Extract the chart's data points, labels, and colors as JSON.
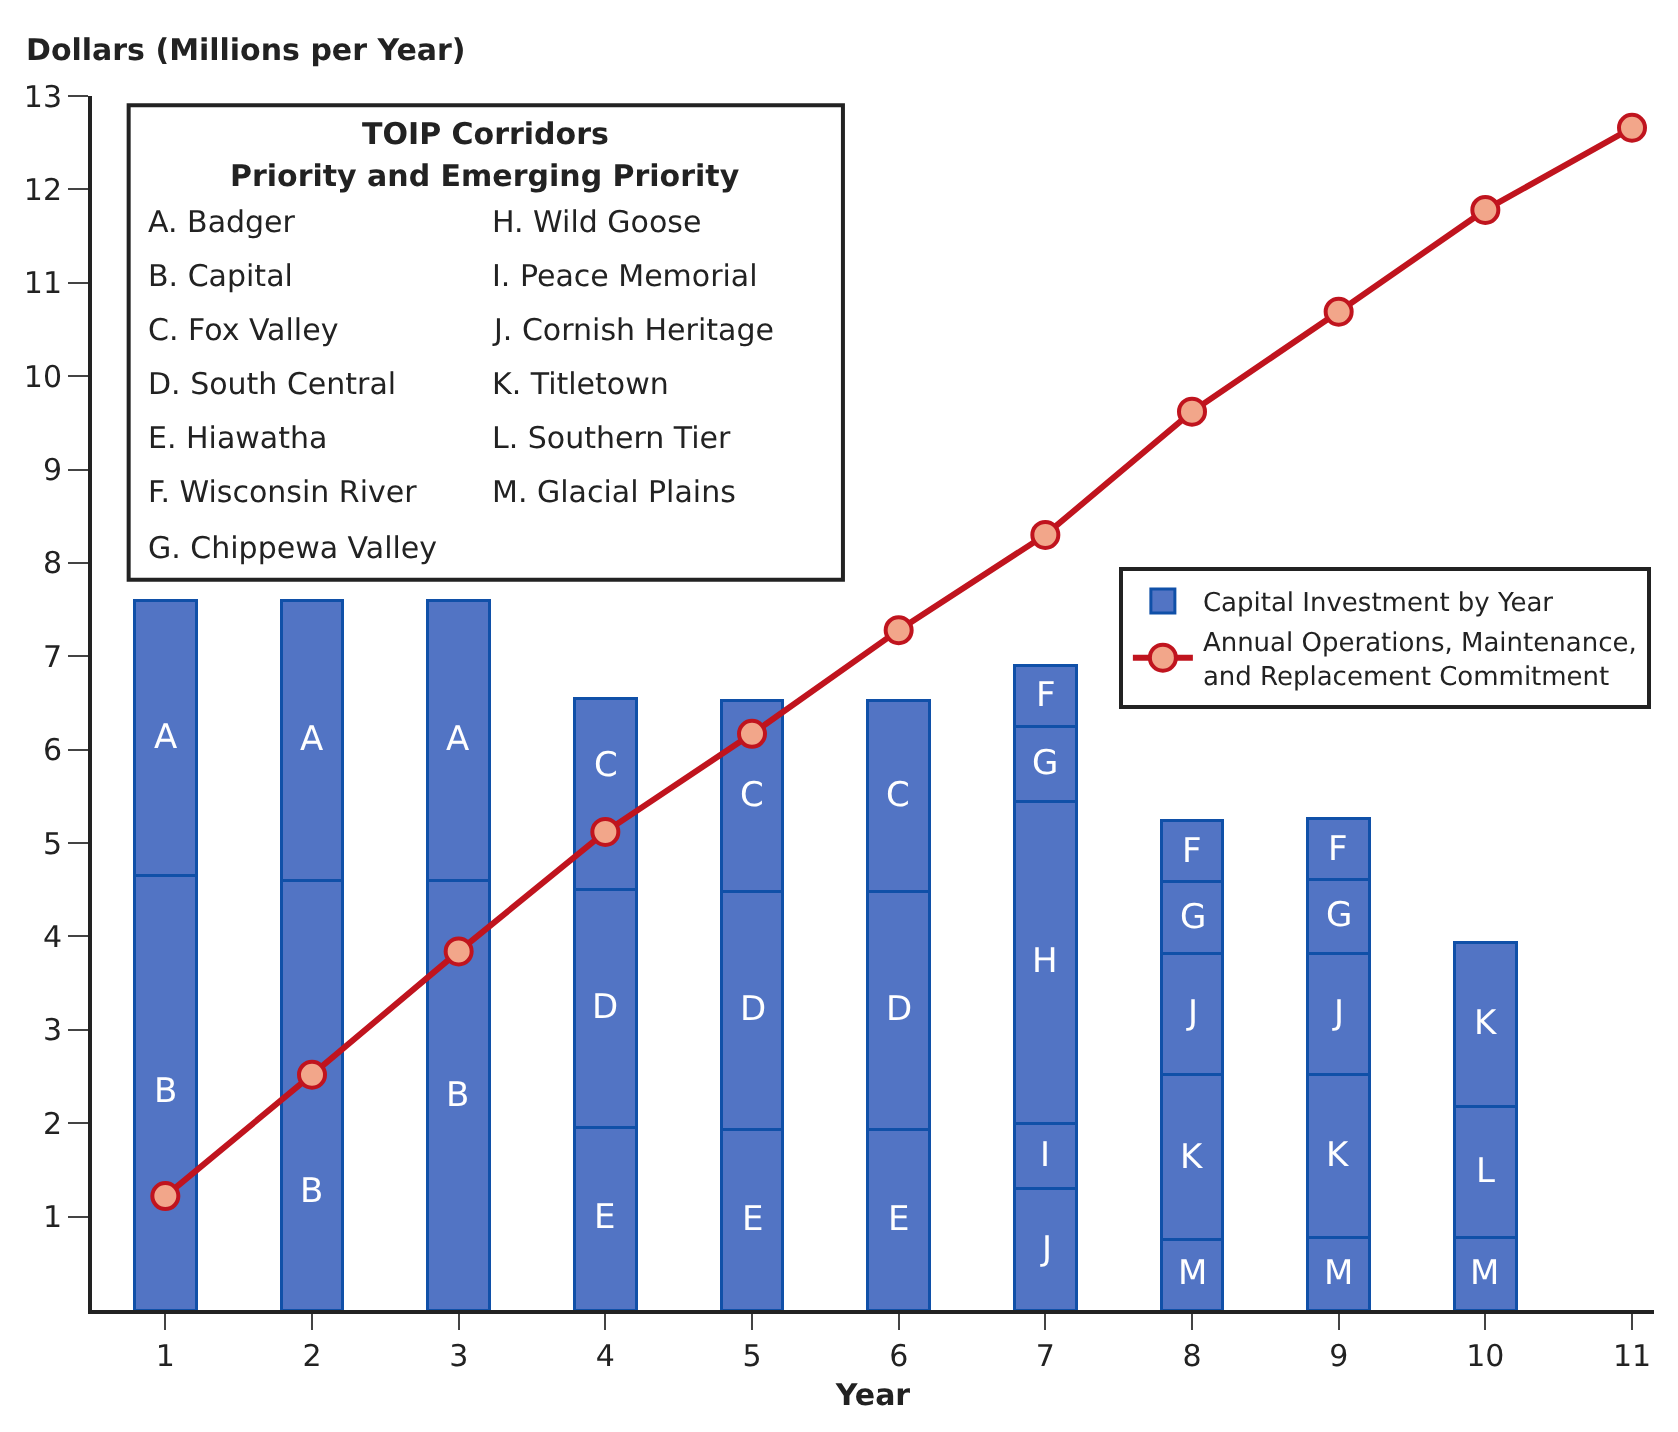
{
  "chart_data": {
    "type": "bar",
    "stacked": true,
    "ylabel": "Dollars (Millions per Year)",
    "xlabel": "Year",
    "x": [
      1,
      2,
      3,
      4,
      5,
      6,
      7,
      8,
      9,
      10,
      11
    ],
    "xlim": [
      0.5,
      11.15
    ],
    "xticks": [
      1,
      2,
      3,
      4,
      5,
      6,
      7,
      8,
      9,
      10,
      11
    ],
    "ylim": [
      0,
      13
    ],
    "yticks": [
      1,
      2,
      3,
      4,
      5,
      6,
      7,
      8,
      9,
      10,
      11,
      12,
      13
    ],
    "legend": "right",
    "series": [
      {
        "name": "Capital Investment by Year",
        "color": "#5274c4",
        "values": [
          4.65,
          4.6,
          4.6,
          1.95,
          1.93,
          1.93,
          1.3,
          0.75,
          0.78,
          0.78,
          null
        ],
        "value_labels": [
          "B",
          "B",
          "B",
          "E",
          "E",
          "E",
          "J",
          "M",
          "M",
          "M",
          null
        ]
      },
      {
        "color": "#5274c4",
        "values": [
          2.95,
          3.0,
          3.0,
          2.55,
          2.55,
          2.55,
          0.7,
          1.77,
          1.74,
          1.4,
          null
        ],
        "value_labels": [
          "A",
          "A",
          "A",
          "D",
          "D",
          "D",
          "I",
          "K",
          "K",
          "L",
          null
        ]
      },
      {
        "color": "#5274c4",
        "values": [
          null,
          null,
          null,
          2.05,
          2.05,
          2.05,
          3.45,
          1.3,
          1.3,
          1.76,
          null
        ],
        "value_labels": [
          null,
          null,
          null,
          "C",
          "C",
          "C",
          "H",
          "J",
          "J",
          "K",
          null
        ]
      },
      {
        "color": "#5274c4",
        "values": [
          null,
          null,
          null,
          null,
          null,
          null,
          0.8,
          0.77,
          0.79,
          null,
          null
        ],
        "value_labels": [
          null,
          null,
          null,
          null,
          null,
          null,
          "G",
          "G",
          "G",
          null,
          null
        ]
      },
      {
        "color": "#5274c4",
        "values": [
          null,
          null,
          null,
          null,
          null,
          null,
          0.65,
          0.65,
          0.65,
          null,
          null
        ],
        "value_labels": [
          null,
          null,
          null,
          null,
          null,
          null,
          "F",
          "F",
          "F",
          null,
          null
        ]
      },
      {
        "type": "line",
        "name": "Annual Operations, Maintenance, and Replacement Commitment",
        "color": "#c0141e",
        "marker": "circle",
        "values": [
          1.22,
          2.52,
          3.84,
          5.12,
          6.17,
          7.28,
          8.3,
          9.62,
          10.69,
          11.78,
          12.66
        ]
      }
    ],
    "annotations": [
      "TOIP Corridors",
      "Priority and Emerging Priority",
      "A. Badger",
      "B. Capital",
      "C. Fox Valley",
      "D. South Central",
      "E. Hiawatha",
      "F. Wisconsin River",
      "G. Chippewa Valley",
      "H. Wild Goose",
      "I. Peace Memorial",
      "J. Cornish Heritage",
      "K. Titletown",
      "L. Southern Tier",
      "M. Glacial Plains"
    ]
  }
}
